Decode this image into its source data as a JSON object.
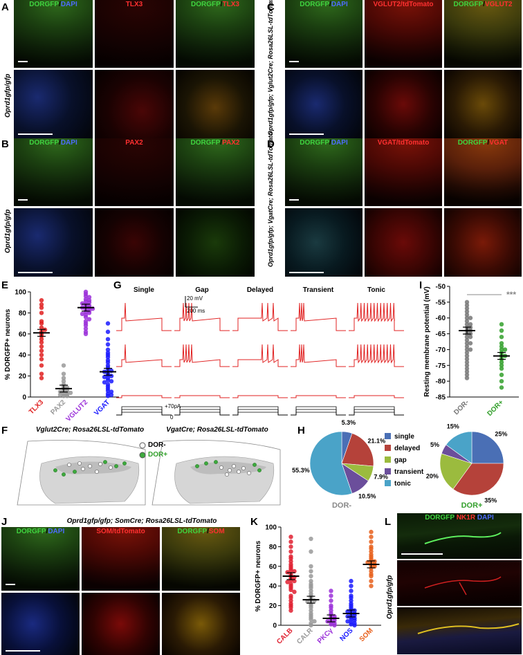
{
  "panels": {
    "A": {
      "letter": "A",
      "titles": [
        "DORGFP/DAPI",
        "TLX3",
        "DORGFP/TLX3"
      ],
      "genotype": "Oprd1gfp/gfp"
    },
    "B": {
      "letter": "B",
      "titles": [
        "DORGFP/DAPI",
        "PAX2",
        "DORGFP/PAX2"
      ],
      "genotype": "Oprd1gfp/gfp"
    },
    "C": {
      "letter": "C",
      "titles": [
        "DORGFP/DAPI",
        "VGLUT2/tdTomato",
        "DORGFP/VGLUT2"
      ],
      "genotype": "Oprd1gfp/gfp; Vglut2Cre; Rosa26LSL-tdTomato"
    },
    "D": {
      "letter": "D",
      "titles": [
        "DORGFP/DAPI",
        "VGAT/tdTomato",
        "DORGFP/VGAT"
      ],
      "genotype": "Oprd1gfp/gfp; VgatCre; Rosa26LSL-tdTomato"
    },
    "E": {
      "letter": "E"
    },
    "F": {
      "letter": "F",
      "left_title": "Vglut2Cre; Rosa26LSL-tdTomato",
      "right_title": "VgatCre; Rosa26LSL-tdTomato",
      "legend": [
        "DOR-",
        "DOR+"
      ]
    },
    "G": {
      "letter": "G",
      "columns": [
        "Single",
        "Gap",
        "Delayed",
        "Transient",
        "Tonic"
      ],
      "scale_v": "20 mV",
      "scale_t": "200 ms",
      "step_label": "+70pA",
      "zero_label": "0"
    },
    "H": {
      "letter": "H"
    },
    "I": {
      "letter": "I"
    },
    "J": {
      "letter": "J",
      "header": "Oprd1gfp/gfp; SomCre; Rosa26LSL-tdTomato",
      "titles": [
        "DORGFP/DAPI",
        "SOM/tdTomato",
        "DORGFP/SOM"
      ]
    },
    "K": {
      "letter": "K"
    },
    "L": {
      "letter": "L",
      "title": "DORGFP/NK1R/DAPI",
      "genotype": "Oprd1gfp/gfp"
    }
  },
  "chart_data": [
    {
      "id": "E",
      "type": "scatter",
      "ylabel": "% DORGFP+ neurons",
      "ylim": [
        0,
        100
      ],
      "yticks": [
        0,
        20,
        40,
        60,
        80,
        100
      ],
      "categories": [
        "TLX3",
        "PAX2",
        "VGLUT2",
        "VGAT"
      ],
      "colors": [
        "#e02020",
        "#999999",
        "#9b30d9",
        "#1a1aff"
      ],
      "means": [
        61,
        8,
        85,
        24
      ],
      "points": [
        [
          92,
          88,
          85,
          80,
          72,
          70,
          66,
          64,
          62,
          60,
          58,
          55,
          52,
          48,
          44,
          40,
          36,
          30,
          22,
          18
        ],
        [
          30,
          22,
          18,
          15,
          12,
          10,
          9,
          8,
          7,
          6,
          5,
          5,
          4,
          3,
          2,
          2,
          1,
          1
        ],
        [
          100,
          98,
          96,
          95,
          93,
          92,
          91,
          90,
          89,
          88,
          87,
          86,
          85,
          85,
          84,
          83,
          82,
          81,
          80,
          79,
          78,
          76,
          74,
          72,
          70,
          68,
          65,
          62,
          60
        ],
        [
          70,
          62,
          55,
          50,
          45,
          42,
          40,
          38,
          35,
          33,
          30,
          28,
          26,
          25,
          24,
          22,
          21,
          20,
          19,
          18,
          16,
          15,
          14,
          12,
          10,
          8,
          6,
          5,
          3,
          2,
          1
        ]
      ]
    },
    {
      "id": "I",
      "type": "scatter",
      "ylabel": "Resting membrane potential (mV)",
      "ylim": [
        -85,
        -50
      ],
      "yticks": [
        -50,
        -55,
        -60,
        -65,
        -70,
        -75,
        -80,
        -85
      ],
      "categories": [
        "DOR-",
        "DOR+"
      ],
      "colors": [
        "#777777",
        "#33a02c"
      ],
      "means": [
        -64,
        -72
      ],
      "significance": "***",
      "points": [
        [
          -55,
          -56,
          -57,
          -58,
          -59,
          -60,
          -60,
          -61,
          -62,
          -62,
          -63,
          -63,
          -64,
          -64,
          -65,
          -65,
          -66,
          -66,
          -67,
          -68,
          -68,
          -69,
          -70,
          -70,
          -71,
          -72,
          -73,
          -74,
          -75,
          -76,
          -77,
          -78,
          -79
        ],
        [
          -62,
          -64,
          -66,
          -68,
          -69,
          -70,
          -70,
          -71,
          -72,
          -72,
          -73,
          -74,
          -75,
          -76,
          -78,
          -80,
          -82
        ]
      ]
    },
    {
      "id": "H",
      "type": "pie",
      "legend": [
        "single",
        "delayed",
        "gap",
        "transient",
        "tonic"
      ],
      "colors": [
        "#4a6fb5",
        "#b5423a",
        "#9bbb3e",
        "#6b4e9b",
        "#4aa3c8"
      ],
      "pies": [
        {
          "label": "DOR-",
          "values": [
            5.3,
            21.1,
            7.9,
            10.5,
            55.3
          ],
          "labels": [
            "5.3%",
            "21.1%",
            "7.9%",
            "10.5%",
            "55.3%"
          ]
        },
        {
          "label": "DOR+",
          "values": [
            25,
            35,
            20,
            5,
            15
          ],
          "labels": [
            "25%",
            "35%",
            "20%",
            "5%",
            "15%"
          ]
        }
      ]
    },
    {
      "id": "K",
      "type": "scatter",
      "ylabel": "% DORGFP+ neurons",
      "ylim": [
        0,
        100
      ],
      "yticks": [
        0,
        20,
        40,
        60,
        80,
        100
      ],
      "categories": [
        "CALB",
        "CALR",
        "PKCγ",
        "NOS",
        "SOM"
      ],
      "colors": [
        "#e02030",
        "#999999",
        "#9b30d9",
        "#1a1aff",
        "#e8601c"
      ],
      "means": [
        50,
        26,
        7,
        12,
        62
      ],
      "points": [
        [
          90,
          85,
          80,
          75,
          70,
          68,
          65,
          62,
          60,
          58,
          56,
          55,
          54,
          52,
          50,
          49,
          48,
          46,
          45,
          44,
          42,
          40,
          38,
          36,
          34,
          30,
          28,
          25,
          22,
          20,
          18,
          15
        ],
        [
          88,
          75,
          60,
          55,
          50,
          45,
          42,
          40,
          38,
          35,
          32,
          30,
          28,
          26,
          25,
          24,
          22,
          20,
          18,
          15,
          12,
          10,
          8,
          6,
          4,
          2,
          0
        ],
        [
          35,
          30,
          25,
          20,
          18,
          15,
          12,
          10,
          9,
          8,
          7,
          6,
          5,
          4,
          3,
          2,
          1,
          0
        ],
        [
          45,
          40,
          35,
          30,
          28,
          25,
          22,
          20,
          18,
          16,
          15,
          14,
          13,
          12,
          11,
          10,
          9,
          8,
          7,
          6,
          5,
          4,
          3,
          2,
          1,
          0
        ],
        [
          95,
          90,
          85,
          80,
          78,
          75,
          72,
          70,
          68,
          66,
          65,
          64,
          63,
          62,
          61,
          60,
          58,
          55,
          52,
          50,
          45,
          40
        ]
      ]
    }
  ]
}
